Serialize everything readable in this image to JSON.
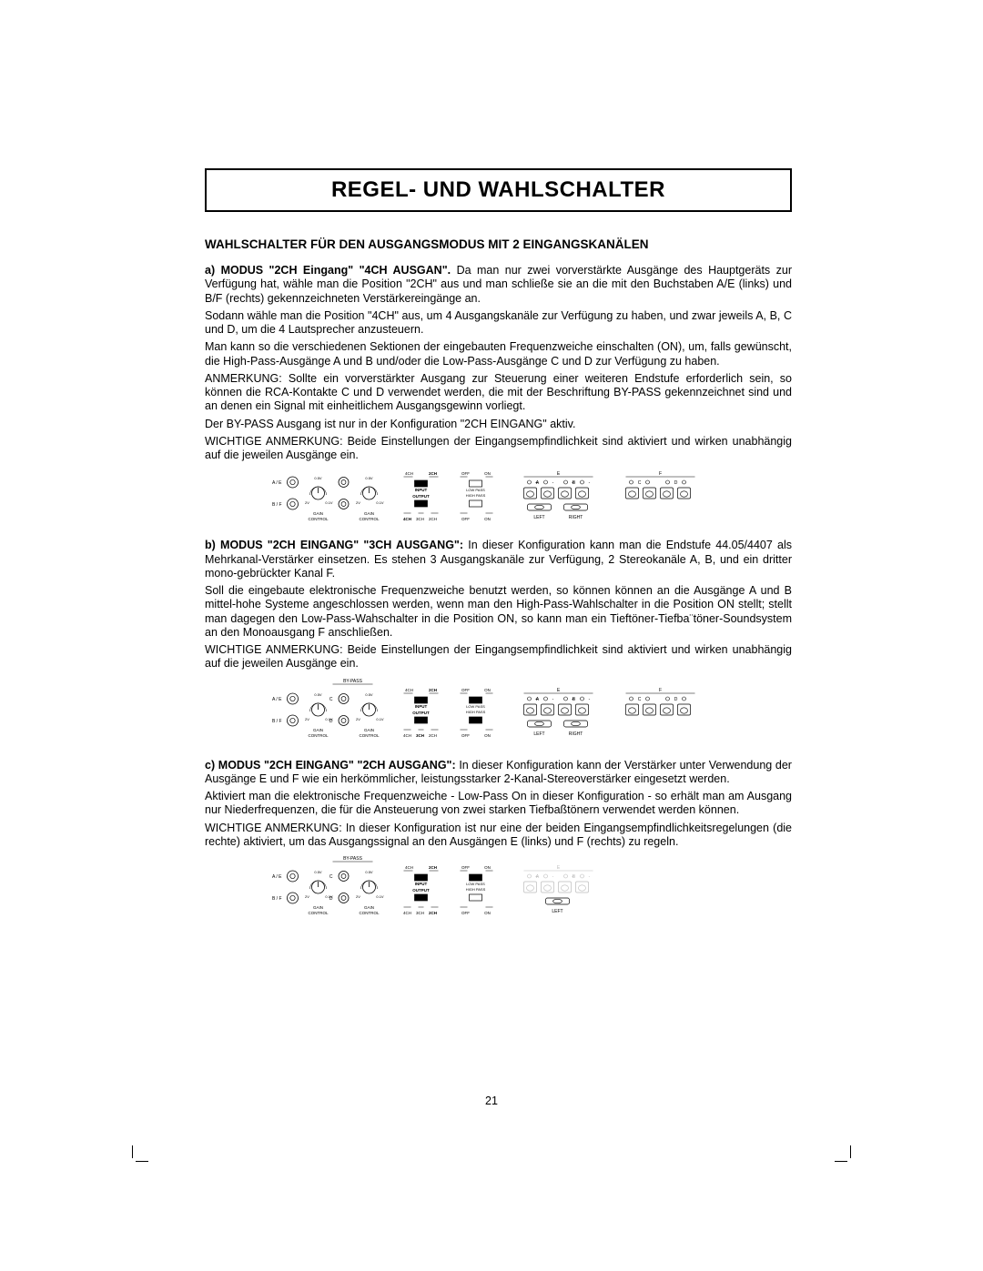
{
  "page": {
    "title": "REGEL- UND WAHLSCHALTER",
    "subheading": "WAHLSCHALTER FÜR DEN AUSGANGSMODUS MIT 2 EINGANGSKANÄLEN",
    "pagenum": "21",
    "background_color": "#ffffff",
    "text_color": "#000000",
    "border_color": "#000000",
    "title_fontsize": 24,
    "subheading_fontsize": 13.5,
    "body_fontsize": 12.5,
    "line_height": 1.22
  },
  "sections": {
    "a": {
      "label": "a)",
      "mode_label": "MODUS \"2CH Eingang\" \"4CH AUSGAN\".",
      "p1": "Da man nur zwei vorverstärkte Ausgänge des Hauptgeräts zur Verfügung hat, wähle man die Position \"2CH\" aus und man schließe sie an die mit den Buchstaben A/E (links) und B/F (rechts) gekennzeichneten Verstärkereingänge an.",
      "p2": "Sodann wähle man die Position \"4CH\" aus, um 4 Ausgangskanäle zur Verfügung zu haben, und zwar jeweils A, B, C und D, um die 4 Lautsprecher anzusteuern.",
      "p3": "Man kann so die verschiedenen Sektionen der eingebauten Frequenzweiche einschalten (ON), um, falls gewünscht, die High-Pass-Ausgänge A und B und/oder die Low-Pass-Ausgänge C und D zur Verfügung zu haben.",
      "p4": "ANMERKUNG: Sollte ein vorverstärkter Ausgang zur Steuerung einer weiteren Endstufe erforderlich sein, so können die RCA-Kontakte C und D verwendet werden, die mit der Beschriftung BY-PASS gekennzeichnet sind und an denen ein Signal mit einheitlichem Ausgangsgewinn vorliegt.",
      "p5": "Der BY-PASS Ausgang ist nur in der Konfiguration \"2CH EINGANG\" aktiv.",
      "p6": "WICHTIGE ANMERKUNG: Beide Einstellungen der Eingangsempfindlichkeit sind aktiviert und wirken unabhängig auf die jeweilen Ausgänge ein."
    },
    "b": {
      "label": "b)",
      "mode_label": "MODUS \"2CH EINGANG\" \"3CH AUSGANG\":",
      "p1": "In dieser Konfiguration kann man die Endstufe 44.05/4407 als Mehrkanal-Verstärker einsetzen. Es stehen 3 Ausgangskanäle zur Verfügung, 2 Stereokanäle A, B, und ein dritter mono-gebrückter Kanal F.",
      "p2": "Soll die eingebaute elektronische Frequenzweiche benutzt werden, so können können an die Ausgänge A und B mittel-hohe Systeme angeschlossen werden, wenn man den High-Pass-Wahlschalter in die Position ON stellt; stellt man dagegen den Low-Pass-Wahschalter in die Position ON, so kann man ein Tieftöner-Tiefba¨töner-Soundsystem an den Monoausgang F anschließen.",
      "p3": "WICHTIGE ANMERKUNG: Beide Einstellungen der Eingangsempfindlichkeit sind aktiviert und wirken unabhängig auf die jeweilen Ausgänge ein."
    },
    "c": {
      "label": "c)",
      "mode_label": "MODUS \"2CH EINGANG\" \"2CH AUSGANG\":",
      "p1": "In dieser Konfiguration kann der Verstärker unter Verwendung der Ausgänge E und F wie ein herkömmlicher, leistungsstarker 2-Kanal-Stereoverstärker eingesetzt werden.",
      "p2": "Aktiviert man die elektronische Frequenzweiche - Low-Pass On in dieser Konfiguration - so erhält man am Ausgang nur Niederfrequenzen, die für die Ansteuerung von zwei starken Tiefbaßtönern verwendet werden können.",
      "p3": "WICHTIGE ANMERKUNG: In dieser Konfiguration ist nur eine der beiden Eingangsempfindlichkeitsregelungen (die rechte) aktiviert, um das Ausgangssignal an den Ausgängen E (links) und F (rechts) zu regeln."
    }
  },
  "diagrams": {
    "common_labels": {
      "bypass": "BY-PASS",
      "ae": "A / E",
      "bf": "B / F",
      "gain_control": "GAIN CONTROL",
      "v05": "0.5V",
      "v2": "2V",
      "v01": "0.1V",
      "input": "INPUT",
      "output": "OUTPUT",
      "ch4": "4CH",
      "ch3": "3CH",
      "ch2": "2CH",
      "off": "OFF",
      "on": "ON",
      "lowpass": "LOW PASS",
      "highpass": "HIGH PASS",
      "left": "LEFT",
      "right": "RIGHT",
      "E": "E",
      "F": "F",
      "A": "A",
      "B": "B",
      "C": "C",
      "D": "D"
    },
    "a": {
      "input_bold": "2CH",
      "output_bold": "4CH",
      "lowpass_sw": "off",
      "highpass_sw": "off",
      "show_bypass_label": false,
      "show_c_input": false,
      "show_d_input": false,
      "speakers_F": false,
      "show_left_right": true,
      "show_right_F": true,
      "output_pos_bold_idx": 0
    },
    "b": {
      "input_bold": "2CH",
      "output_bold": "3CH",
      "lowpass_sw": "on",
      "highpass_sw": "on",
      "show_bypass_label": true,
      "show_c_input": true,
      "show_d_input": true,
      "speakers_F": true,
      "show_left_right": true,
      "show_right_F": true,
      "output_pos_bold_idx": 1
    },
    "c": {
      "input_bold": "2CH",
      "output_bold": "2CH",
      "lowpass_sw": "on",
      "highpass_sw": "off",
      "show_bypass_label": true,
      "show_c_input": true,
      "show_d_input": true,
      "speakers_F": true,
      "show_left_right": false,
      "show_right_F": false,
      "grey_AB": true,
      "grey_CD": true,
      "output_pos_bold_idx": 2
    }
  }
}
